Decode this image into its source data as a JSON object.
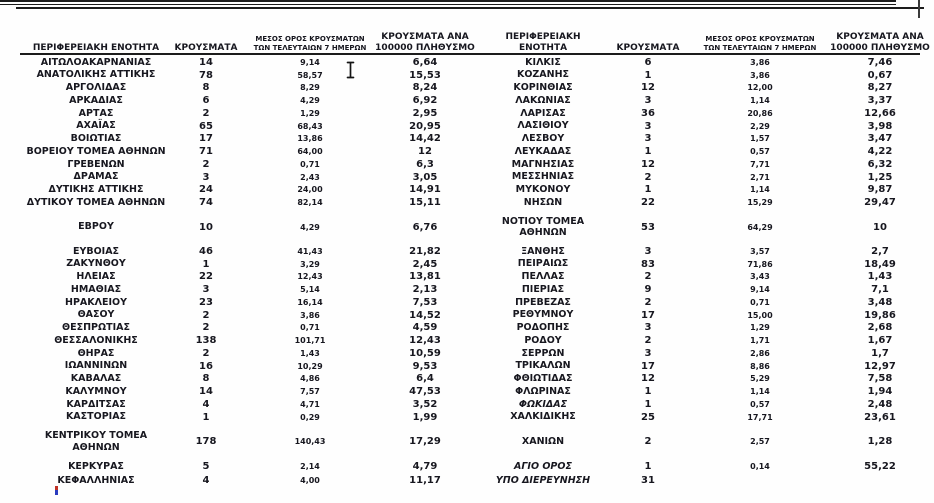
{
  "page": {
    "colors": {
      "text": "#17171f",
      "rule": "#1c1c1c",
      "background": "#fefefe"
    }
  },
  "table": {
    "header": {
      "left": {
        "region": "ΠΕΡΙΦΕΡΕΙΑΚΗ ΕΝΟΤΗΤΑ",
        "cases": "ΚΡΟΥΣΜΑΤΑ",
        "avg7": "ΜΕΣΟΣ ΟΡΟΣ ΚΡΟΥΣΜΑΤΩΝ\nΤΩΝ ΤΕΛΕΥΤΑΙΩΝ 7 ΗΜΕΡΩΝ",
        "per100k": "ΚΡΟΥΣΜΑΤΑ ΑΝΑ\n100000 ΠΛΗΘΥΣΜΟ"
      },
      "right": {
        "region": "ΠΕΡΙΦΕΡΕΙΑΚΗ\nΕΝΟΤΗΤΑ",
        "cases": "ΚΡΟΥΣΜΑΤΑ",
        "avg7": "ΜΕΣΟΣ ΟΡΟΣ ΚΡΟΥΣΜΑΤΩΝ\nΤΩΝ ΤΕΛΕΥΤΑΙΩΝ 7 ΗΜΕΡΩΝ",
        "per100k": "ΚΡΟΥΣΜΑΤΑ ΑΝΑ\n100000 ΠΛΗΘΥΣΜΟ"
      }
    },
    "rows": [
      {
        "left": {
          "region": "ΑΙΤΩΛΟΑΚΑΡΝΑΝΙΑΣ",
          "cases": "14",
          "avg7": "9,14",
          "per100k": "6,64"
        },
        "right": {
          "region": "ΚΙΛΚΙΣ",
          "cases": "6",
          "avg7": "3,86",
          "per100k": "7,46"
        }
      },
      {
        "left": {
          "region": "ΑΝΑΤΟΛΙΚΗΣ ΑΤΤΙΚΗΣ",
          "cases": "78",
          "avg7": "58,57",
          "per100k": "15,53"
        },
        "right": {
          "region": "ΚΟΖΑΝΗΣ",
          "cases": "1",
          "avg7": "3,86",
          "per100k": "0,67"
        }
      },
      {
        "left": {
          "region": "ΑΡΓΟΛΙΔΑΣ",
          "cases": "8",
          "avg7": "8,29",
          "per100k": "8,24"
        },
        "right": {
          "region": "ΚΟΡΙΝΘΙΑΣ",
          "cases": "12",
          "avg7": "12,00",
          "per100k": "8,27"
        }
      },
      {
        "left": {
          "region": "ΑΡΚΑΔΙΑΣ",
          "cases": "6",
          "avg7": "4,29",
          "per100k": "6,92"
        },
        "right": {
          "region": "ΛΑΚΩΝΙΑΣ",
          "cases": "3",
          "avg7": "1,14",
          "per100k": "3,37"
        }
      },
      {
        "left": {
          "region": "ΑΡΤΑΣ",
          "cases": "2",
          "avg7": "1,29",
          "per100k": "2,95"
        },
        "right": {
          "region": "ΛΑΡΙΣΑΣ",
          "cases": "36",
          "avg7": "20,86",
          "per100k": "12,66"
        }
      },
      {
        "left": {
          "region": "ΑΧΑΪΑΣ",
          "cases": "65",
          "avg7": "68,43",
          "per100k": "20,95"
        },
        "right": {
          "region": "ΛΑΣΙΘΙΟΥ",
          "cases": "3",
          "avg7": "2,29",
          "per100k": "3,98"
        }
      },
      {
        "left": {
          "region": "ΒΟΙΩΤΙΑΣ",
          "cases": "17",
          "avg7": "13,86",
          "per100k": "14,42"
        },
        "right": {
          "region": "ΛΕΣΒΟΥ",
          "cases": "3",
          "avg7": "1,57",
          "per100k": "3,47"
        }
      },
      {
        "left": {
          "region": "ΒΟΡΕΙΟΥ ΤΟΜΕΑ ΑΘΗΝΩΝ",
          "cases": "71",
          "avg7": "64,00",
          "per100k": "12"
        },
        "right": {
          "region": "ΛΕΥΚΑΔΑΣ",
          "cases": "1",
          "avg7": "0,57",
          "per100k": "4,22"
        }
      },
      {
        "left": {
          "region": "ΓΡΕΒΕΝΩΝ",
          "cases": "2",
          "avg7": "0,71",
          "per100k": "6,3"
        },
        "right": {
          "region": "ΜΑΓΝΗΣΙΑΣ",
          "cases": "12",
          "avg7": "7,71",
          "per100k": "6,32"
        }
      },
      {
        "left": {
          "region": "ΔΡΑΜΑΣ",
          "cases": "3",
          "avg7": "2,43",
          "per100k": "3,05"
        },
        "right": {
          "region": "ΜΕΣΣΗΝΙΑΣ",
          "cases": "2",
          "avg7": "2,71",
          "per100k": "1,25"
        }
      },
      {
        "left": {
          "region": "ΔΥΤΙΚΗΣ ΑΤΤΙΚΗΣ",
          "cases": "24",
          "avg7": "24,00",
          "per100k": "14,91"
        },
        "right": {
          "region": "ΜΥΚΟΝΟΥ",
          "cases": "1",
          "avg7": "1,14",
          "per100k": "9,87"
        }
      },
      {
        "left": {
          "region": "ΔΥΤΙΚΟΥ ΤΟΜΕΑ ΑΘΗΝΩΝ",
          "cases": "74",
          "avg7": "82,14",
          "per100k": "15,11"
        },
        "right": {
          "region": "ΝΗΣΩΝ",
          "cases": "22",
          "avg7": "15,29",
          "per100k": "29,47"
        }
      },
      {
        "tall": true,
        "left": {
          "region": "ΕΒΡΟΥ",
          "cases": "10",
          "avg7": "4,29",
          "per100k": "6,76"
        },
        "right": {
          "region": "ΝΟΤΙΟΥ ΤΟΜΕΑ\nΑΘΗΝΩΝ",
          "cases": "53",
          "avg7": "64,29",
          "per100k": "10"
        }
      },
      {
        "left": {
          "region": "ΕΥΒΟΙΑΣ",
          "cases": "46",
          "avg7": "41,43",
          "per100k": "21,82"
        },
        "right": {
          "region": "ΞΑΝΘΗΣ",
          "cases": "3",
          "avg7": "3,57",
          "per100k": "2,7"
        }
      },
      {
        "left": {
          "region": "ΖΑΚΥΝΘΟΥ",
          "cases": "1",
          "avg7": "3,29",
          "per100k": "2,45"
        },
        "right": {
          "region": "ΠΕΙΡΑΙΩΣ",
          "cases": "83",
          "avg7": "71,86",
          "per100k": "18,49"
        }
      },
      {
        "left": {
          "region": "ΗΛΕΙΑΣ",
          "cases": "22",
          "avg7": "12,43",
          "per100k": "13,81"
        },
        "right": {
          "region": "ΠΕΛΛΑΣ",
          "cases": "2",
          "avg7": "3,43",
          "per100k": "1,43"
        }
      },
      {
        "left": {
          "region": "ΗΜΑΘΙΑΣ",
          "cases": "3",
          "avg7": "5,14",
          "per100k": "2,13"
        },
        "right": {
          "region": "ΠΙΕΡΙΑΣ",
          "cases": "9",
          "avg7": "9,14",
          "per100k": "7,1"
        }
      },
      {
        "left": {
          "region": "ΗΡΑΚΛΕΙΟΥ",
          "cases": "23",
          "avg7": "16,14",
          "per100k": "7,53"
        },
        "right": {
          "region": "ΠΡΕΒΕΖΑΣ",
          "cases": "2",
          "avg7": "0,71",
          "per100k": "3,48"
        }
      },
      {
        "left": {
          "region": "ΘΑΣΟΥ",
          "cases": "2",
          "avg7": "3,86",
          "per100k": "14,52"
        },
        "right": {
          "region": "ΡΕΘΥΜΝΟΥ",
          "cases": "17",
          "avg7": "15,00",
          "per100k": "19,86"
        }
      },
      {
        "left": {
          "region": "ΘΕΣΠΡΩΤΙΑΣ",
          "cases": "2",
          "avg7": "0,71",
          "per100k": "4,59"
        },
        "right": {
          "region": "ΡΟΔΟΠΗΣ",
          "cases": "3",
          "avg7": "1,29",
          "per100k": "2,68"
        }
      },
      {
        "left": {
          "region": "ΘΕΣΣΑΛΟΝΙΚΗΣ",
          "cases": "138",
          "avg7": "101,71",
          "per100k": "12,43"
        },
        "right": {
          "region": "ΡΟΔΟΥ",
          "cases": "2",
          "avg7": "1,71",
          "per100k": "1,67"
        }
      },
      {
        "left": {
          "region": "ΘΗΡΑΣ",
          "cases": "2",
          "avg7": "1,43",
          "per100k": "10,59"
        },
        "right": {
          "region": "ΣΕΡΡΩΝ",
          "cases": "3",
          "avg7": "2,86",
          "per100k": "1,7"
        }
      },
      {
        "left": {
          "region": "ΙΩΑΝΝΙΝΩΝ",
          "cases": "16",
          "avg7": "10,29",
          "per100k": "9,53"
        },
        "right": {
          "region": "ΤΡΙΚΑΛΩΝ",
          "cases": "17",
          "avg7": "8,86",
          "per100k": "12,97"
        }
      },
      {
        "left": {
          "region": "ΚΑΒΑΛΑΣ",
          "cases": "8",
          "avg7": "4,86",
          "per100k": "6,4"
        },
        "right": {
          "region": "ΦΘΙΩΤΙΔΑΣ",
          "cases": "12",
          "avg7": "5,29",
          "per100k": "7,58"
        }
      },
      {
        "left": {
          "region": "ΚΑΛΥΜΝΟΥ",
          "cases": "14",
          "avg7": "7,57",
          "per100k": "47,53"
        },
        "right": {
          "region": "ΦΛΩΡΙΝΑΣ",
          "cases": "1",
          "avg7": "1,14",
          "per100k": "1,94"
        }
      },
      {
        "left": {
          "region": "ΚΑΡΔΙΤΣΑΣ",
          "cases": "4",
          "avg7": "4,71",
          "per100k": "3,52"
        },
        "right": {
          "region": "ΦΩΚΙΔΑΣ",
          "cases": "1",
          "avg7": "0,57",
          "per100k": "2,48",
          "italic": true
        }
      },
      {
        "left": {
          "region": "ΚΑΣΤΟΡΙΑΣ",
          "cases": "1",
          "avg7": "0,29",
          "per100k": "1,99"
        },
        "right": {
          "region": "ΧΑΛΚΙΔΙΚΗΣ",
          "cases": "25",
          "avg7": "17,71",
          "per100k": "23,61"
        }
      },
      {
        "tall": true,
        "left": {
          "region": "ΚΕΝΤΡΙΚΟΥ ΤΟΜΕΑ\nΑΘΗΝΩΝ",
          "cases": "178",
          "avg7": "140,43",
          "per100k": "17,29"
        },
        "right": {
          "region": "ΧΑΝΙΩΝ",
          "cases": "2",
          "avg7": "2,57",
          "per100k": "1,28"
        }
      },
      {
        "loose": true,
        "left": {
          "region": "ΚΕΡΚΥΡΑΣ",
          "cases": "5",
          "avg7": "2,14",
          "per100k": "4,79"
        },
        "right": {
          "region": "ΑΓΙΟ ΟΡΟΣ",
          "cases": "1",
          "avg7": "0,14",
          "per100k": "55,22",
          "italic": true
        }
      },
      {
        "loose": true,
        "left": {
          "region": "ΚΕΦΑΛΛΗΝΙΑΣ",
          "cases": "4",
          "avg7": "4,00",
          "per100k": "11,17"
        },
        "right": {
          "region": "ΥΠΟ ΔΙΕΡΕΥΝΗΣΗ",
          "cases": "31",
          "avg7": "",
          "per100k": "",
          "italic": true
        }
      }
    ]
  },
  "cursor": {
    "type": "i-beam-text-cursor"
  }
}
